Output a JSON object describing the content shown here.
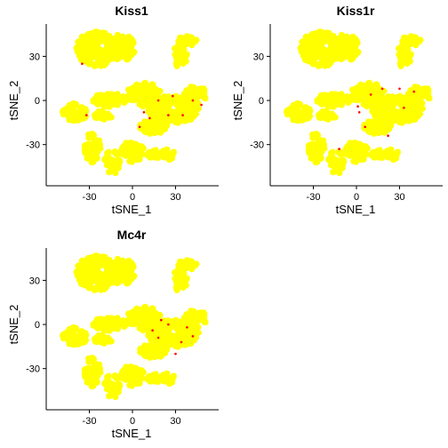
{
  "chart_data": [
    {
      "type": "scatter",
      "title": "Kiss1",
      "xlabel": "tSNE_1",
      "ylabel": "tSNE_2",
      "xlim": [
        -60,
        60
      ],
      "ylim": [
        -58,
        52
      ],
      "xticks": [
        -30,
        0,
        30
      ],
      "yticks": [
        -30,
        0,
        30
      ],
      "grid": false,
      "colors": {
        "low": "#ffff00",
        "high": "#ff0000"
      },
      "highlight_points": [
        {
          "x": 8,
          "y": -8
        },
        {
          "x": 12,
          "y": -12
        },
        {
          "x": 25,
          "y": -10
        },
        {
          "x": 35,
          "y": -10
        },
        {
          "x": 42,
          "y": 0
        },
        {
          "x": 18,
          "y": 0
        },
        {
          "x": 28,
          "y": 3
        },
        {
          "x": -32,
          "y": -10
        },
        {
          "x": -35,
          "y": 25
        },
        {
          "x": 48,
          "y": -3
        },
        {
          "x": 5,
          "y": -18
        }
      ]
    },
    {
      "type": "scatter",
      "title": "Kiss1r",
      "xlabel": "tSNE_1",
      "ylabel": "tSNE_2",
      "xlim": [
        -60,
        60
      ],
      "ylim": [
        -58,
        52
      ],
      "xticks": [
        -30,
        0,
        30
      ],
      "yticks": [
        -30,
        0,
        30
      ],
      "grid": false,
      "colors": {
        "low": "#ffff00",
        "high": "#ff0000"
      },
      "highlight_points": [
        {
          "x": 1,
          "y": -4
        },
        {
          "x": 2,
          "y": -8
        },
        {
          "x": 10,
          "y": 4
        },
        {
          "x": 18,
          "y": 8
        },
        {
          "x": 33,
          "y": -5
        },
        {
          "x": 6,
          "y": -18
        },
        {
          "x": -12,
          "y": -33
        },
        {
          "x": 30,
          "y": 8
        },
        {
          "x": 40,
          "y": 6
        },
        {
          "x": 22,
          "y": -24
        }
      ]
    },
    {
      "type": "scatter",
      "title": "Mc4r",
      "xlabel": "tSNE_1",
      "ylabel": "tSNE_2",
      "xlim": [
        -60,
        60
      ],
      "ylim": [
        -58,
        52
      ],
      "xticks": [
        -30,
        0,
        30
      ],
      "yticks": [
        -30,
        0,
        30
      ],
      "grid": false,
      "colors": {
        "low": "#ffff00",
        "high": "#ff0000"
      },
      "highlight_points": [
        {
          "x": 14,
          "y": -4
        },
        {
          "x": 18,
          "y": -9
        },
        {
          "x": 25,
          "y": 0
        },
        {
          "x": 38,
          "y": -2
        },
        {
          "x": 42,
          "y": -8
        },
        {
          "x": 30,
          "y": -20
        },
        {
          "x": 20,
          "y": 3
        },
        {
          "x": 34,
          "y": -12
        }
      ]
    }
  ]
}
